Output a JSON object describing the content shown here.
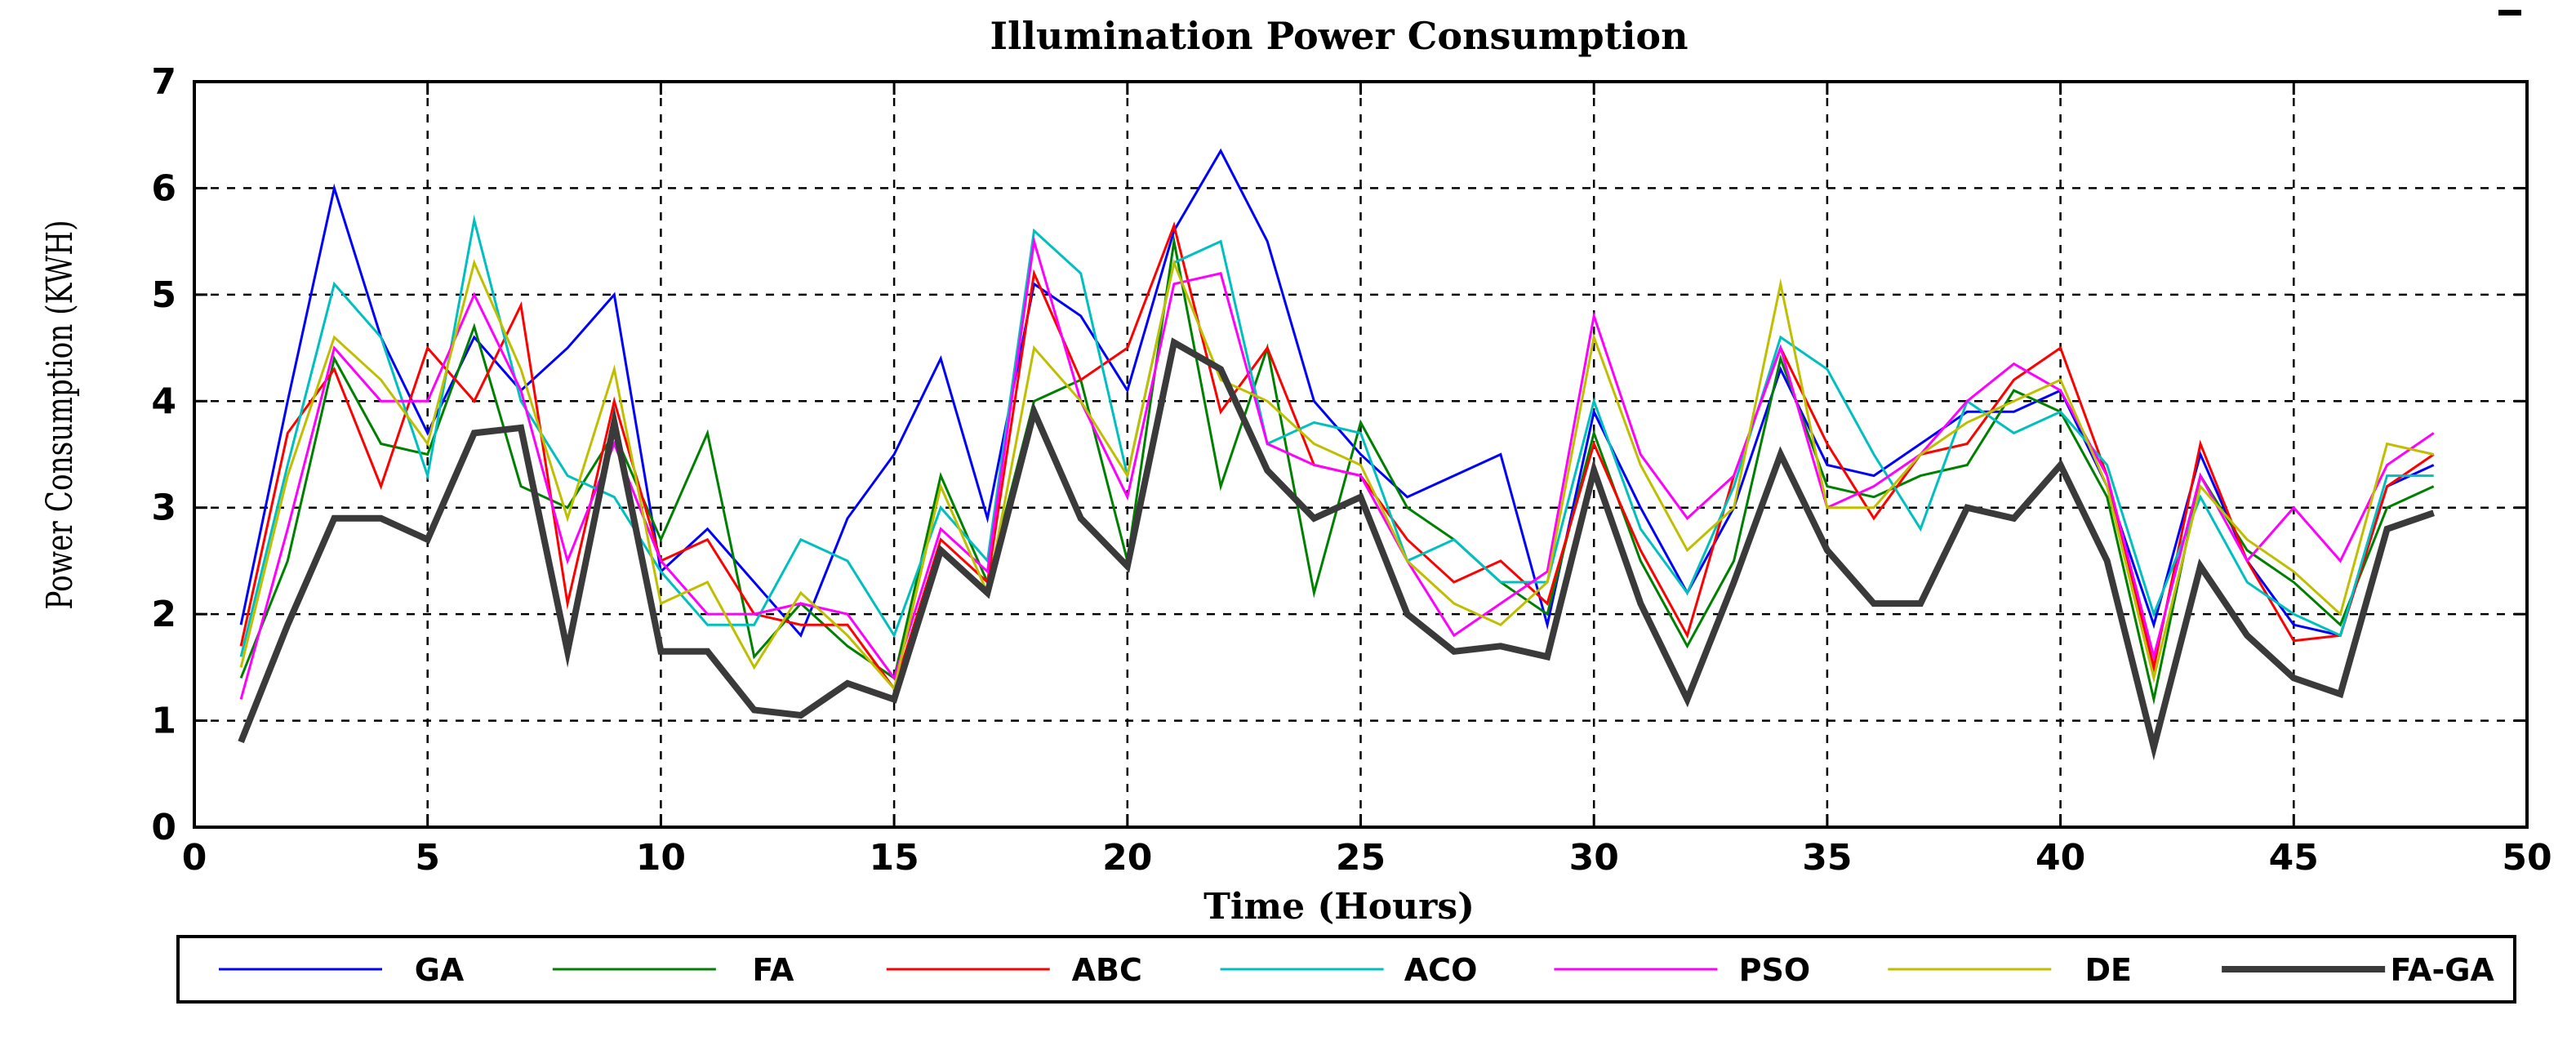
{
  "chart_data": {
    "type": "line",
    "title": "Illumination Power Consumption",
    "xlabel": "Time (Hours)",
    "ylabel": "Power Consumption (KWH)",
    "xlim": [
      0,
      50
    ],
    "ylim": [
      0,
      7
    ],
    "xticks": [
      0,
      5,
      10,
      15,
      20,
      25,
      30,
      35,
      40,
      45,
      50
    ],
    "yticks": [
      0,
      1,
      2,
      3,
      4,
      5,
      6,
      7
    ],
    "grid": true,
    "legend_position": "bottom",
    "x": [
      1,
      2,
      3,
      4,
      5,
      6,
      7,
      8,
      9,
      10,
      11,
      12,
      13,
      14,
      15,
      16,
      17,
      18,
      19,
      20,
      21,
      22,
      23,
      24,
      25,
      26,
      27,
      28,
      29,
      30,
      31,
      32,
      33,
      34,
      35,
      36,
      37,
      38,
      39,
      40,
      41,
      42,
      43,
      44,
      45,
      46,
      47,
      48
    ],
    "series": [
      {
        "name": "GA",
        "color": "#0000ff",
        "width": 3,
        "values": [
          1.9,
          4.0,
          6.0,
          4.6,
          3.7,
          4.6,
          4.1,
          4.5,
          5.0,
          2.4,
          2.8,
          2.3,
          1.8,
          2.9,
          3.5,
          4.4,
          2.9,
          5.1,
          4.8,
          4.1,
          5.6,
          6.35,
          5.5,
          4.0,
          3.5,
          3.1,
          3.3,
          3.5,
          1.9,
          3.9,
          3.0,
          2.2,
          3.0,
          4.3,
          3.4,
          3.3,
          3.6,
          3.9,
          3.9,
          4.1,
          3.2,
          1.9,
          3.5,
          2.5,
          1.9,
          1.8,
          3.2,
          3.4
        ]
      },
      {
        "name": "FA",
        "color": "#008000",
        "width": 3,
        "values": [
          1.4,
          2.5,
          4.4,
          3.6,
          3.5,
          4.7,
          3.2,
          3.0,
          3.7,
          2.7,
          3.7,
          1.6,
          2.1,
          1.7,
          1.4,
          3.3,
          2.3,
          4.0,
          4.2,
          2.5,
          5.5,
          3.2,
          4.5,
          2.2,
          3.8,
          3.0,
          2.7,
          2.3,
          2.0,
          3.7,
          2.5,
          1.7,
          2.5,
          4.4,
          3.2,
          3.1,
          3.3,
          3.4,
          4.1,
          3.9,
          3.1,
          1.2,
          3.3,
          2.6,
          2.3,
          1.9,
          3.0,
          3.2
        ]
      },
      {
        "name": "ABC",
        "color": "#ff0000",
        "width": 3,
        "values": [
          1.7,
          3.7,
          4.3,
          3.2,
          4.5,
          4.0,
          4.9,
          2.1,
          4.0,
          2.5,
          2.7,
          2.0,
          1.9,
          1.9,
          1.3,
          2.7,
          2.3,
          5.2,
          4.2,
          4.5,
          5.65,
          3.9,
          4.5,
          3.4,
          3.3,
          2.7,
          2.3,
          2.5,
          2.1,
          3.6,
          2.6,
          1.8,
          3.3,
          4.5,
          3.6,
          2.9,
          3.5,
          3.6,
          4.2,
          4.5,
          3.3,
          1.5,
          3.6,
          2.5,
          1.75,
          1.8,
          3.2,
          3.5
        ]
      },
      {
        "name": "ACO",
        "color": "#00bfbf",
        "width": 3,
        "values": [
          1.6,
          3.4,
          5.1,
          4.6,
          3.3,
          5.7,
          4.0,
          3.3,
          3.1,
          2.4,
          1.9,
          1.9,
          2.7,
          2.5,
          1.8,
          3.0,
          2.5,
          5.6,
          5.2,
          3.3,
          5.3,
          5.5,
          3.6,
          3.8,
          3.7,
          2.5,
          2.7,
          2.3,
          2.3,
          4.0,
          2.8,
          2.2,
          3.2,
          4.6,
          4.3,
          3.5,
          2.8,
          4.0,
          3.7,
          3.9,
          3.4,
          2.0,
          3.1,
          2.3,
          2.0,
          1.8,
          3.3,
          3.3
        ]
      },
      {
        "name": "PSO",
        "color": "#ff00ff",
        "width": 3,
        "values": [
          1.2,
          2.8,
          4.5,
          4.0,
          4.0,
          5.0,
          4.1,
          2.5,
          3.6,
          2.5,
          2.0,
          2.0,
          2.1,
          2.0,
          1.4,
          2.8,
          2.4,
          5.5,
          4.0,
          3.1,
          5.1,
          5.2,
          3.6,
          3.4,
          3.3,
          2.5,
          1.8,
          2.1,
          2.4,
          4.8,
          3.5,
          2.9,
          3.3,
          4.5,
          3.0,
          3.2,
          3.5,
          4.0,
          4.35,
          4.1,
          3.3,
          1.6,
          3.3,
          2.5,
          3.0,
          2.5,
          3.4,
          3.7
        ]
      },
      {
        "name": "DE",
        "color": "#bfbf00",
        "width": 3,
        "values": [
          1.5,
          3.3,
          4.6,
          4.2,
          3.6,
          5.3,
          4.3,
          2.9,
          4.3,
          2.1,
          2.3,
          1.5,
          2.2,
          1.8,
          1.3,
          3.2,
          2.2,
          4.5,
          4.0,
          3.3,
          5.3,
          4.2,
          4.0,
          3.6,
          3.4,
          2.5,
          2.1,
          1.9,
          2.3,
          4.6,
          3.4,
          2.6,
          3.0,
          5.1,
          3.0,
          3.0,
          3.5,
          3.8,
          4.0,
          4.2,
          3.2,
          1.4,
          3.2,
          2.7,
          2.4,
          2.0,
          3.6,
          3.5
        ]
      },
      {
        "name": "FA-GA",
        "color": "#3a3a3a",
        "width": 8,
        "values": [
          0.8,
          1.9,
          2.9,
          2.9,
          2.7,
          3.7,
          3.75,
          1.65,
          3.8,
          1.65,
          1.65,
          1.1,
          1.05,
          1.35,
          1.2,
          2.6,
          2.2,
          3.9,
          2.9,
          2.45,
          4.55,
          4.3,
          3.35,
          2.9,
          3.1,
          2.0,
          1.65,
          1.7,
          1.6,
          3.35,
          2.1,
          1.2,
          2.3,
          3.5,
          2.6,
          2.1,
          2.1,
          3.0,
          2.9,
          3.4,
          2.5,
          0.75,
          2.45,
          1.8,
          1.4,
          1.25,
          2.8,
          2.95
        ]
      }
    ]
  }
}
